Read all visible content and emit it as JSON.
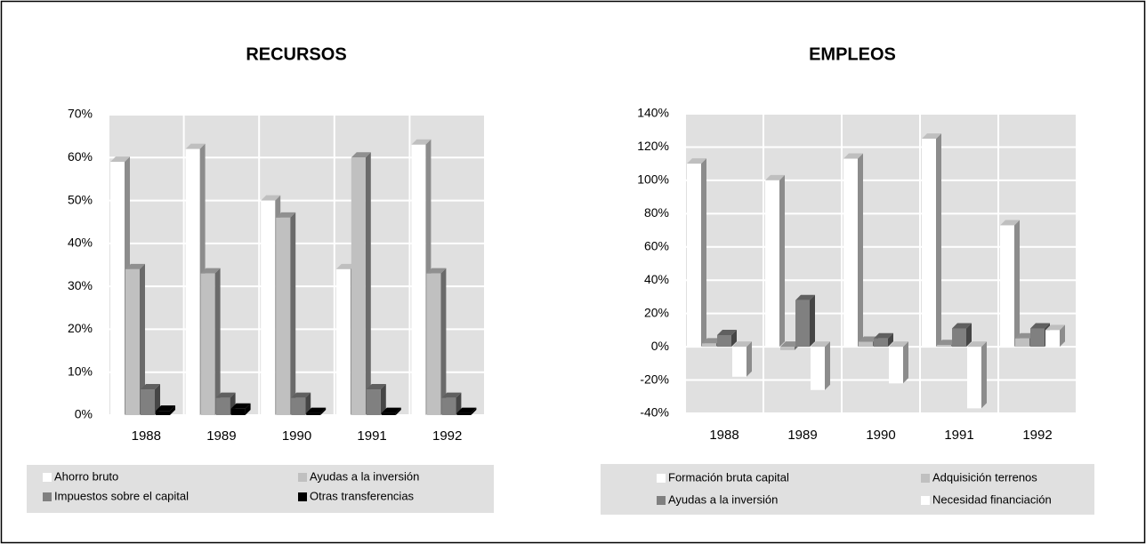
{
  "chart_data": [
    {
      "type": "bar3d",
      "title": "RECURSOS",
      "categories": [
        "1988",
        "1989",
        "1990",
        "1991",
        "1992"
      ],
      "series": [
        {
          "name": "Ahorro bruto",
          "color": "#ffffff",
          "values": [
            59,
            62,
            50,
            34,
            63
          ]
        },
        {
          "name": "Ayudas a la inversión",
          "color": "#c0c0c0",
          "values": [
            34,
            33,
            46,
            60,
            33
          ]
        },
        {
          "name": "Impuestos sobre el capital",
          "color": "#808080",
          "values": [
            6,
            4,
            4,
            6,
            4
          ]
        },
        {
          "name": "Otras transferencias",
          "color": "#000000",
          "values": [
            1,
            1.5,
            0.5,
            0.5,
            0.5
          ]
        }
      ],
      "ylim": [
        0,
        70
      ],
      "yticks": [
        {
          "value": 0,
          "label": "0%"
        },
        {
          "value": 10,
          "label": "10%"
        },
        {
          "value": 20,
          "label": "20%"
        },
        {
          "value": 30,
          "label": "30%"
        },
        {
          "value": 40,
          "label": "40%"
        },
        {
          "value": 50,
          "label": "50%"
        },
        {
          "value": 60,
          "label": "60%"
        },
        {
          "value": 70,
          "label": "70%"
        }
      ],
      "grid": true
    },
    {
      "type": "bar3d",
      "title": "EMPLEOS",
      "categories": [
        "1988",
        "1989",
        "1990",
        "1991",
        "1992"
      ],
      "series": [
        {
          "name": "Formación bruta capital",
          "color": "#ffffff",
          "values": [
            110,
            100,
            113,
            125,
            73
          ]
        },
        {
          "name": "Adquisición terrenos",
          "color": "#c0c0c0",
          "values": [
            2,
            -2,
            3,
            1,
            5
          ]
        },
        {
          "name": "Ayudas a la inversión",
          "color": "#808080",
          "values": [
            7,
            28,
            5,
            11,
            11
          ]
        },
        {
          "name": "Necesidad financiación",
          "color": "#ffffff",
          "values": [
            -18,
            -26,
            -22,
            -37,
            10
          ]
        }
      ],
      "ylim": [
        -40,
        140
      ],
      "yticks": [
        {
          "value": -40,
          "label": "-40%"
        },
        {
          "value": -20,
          "label": "-20%"
        },
        {
          "value": 0,
          "label": "0%"
        },
        {
          "value": 20,
          "label": "20%"
        },
        {
          "value": 40,
          "label": "40%"
        },
        {
          "value": 60,
          "label": "60%"
        },
        {
          "value": 80,
          "label": "80%"
        },
        {
          "value": 100,
          "label": "100%"
        },
        {
          "value": 120,
          "label": "120%"
        },
        {
          "value": 140,
          "label": "140%"
        }
      ],
      "grid": true
    }
  ]
}
